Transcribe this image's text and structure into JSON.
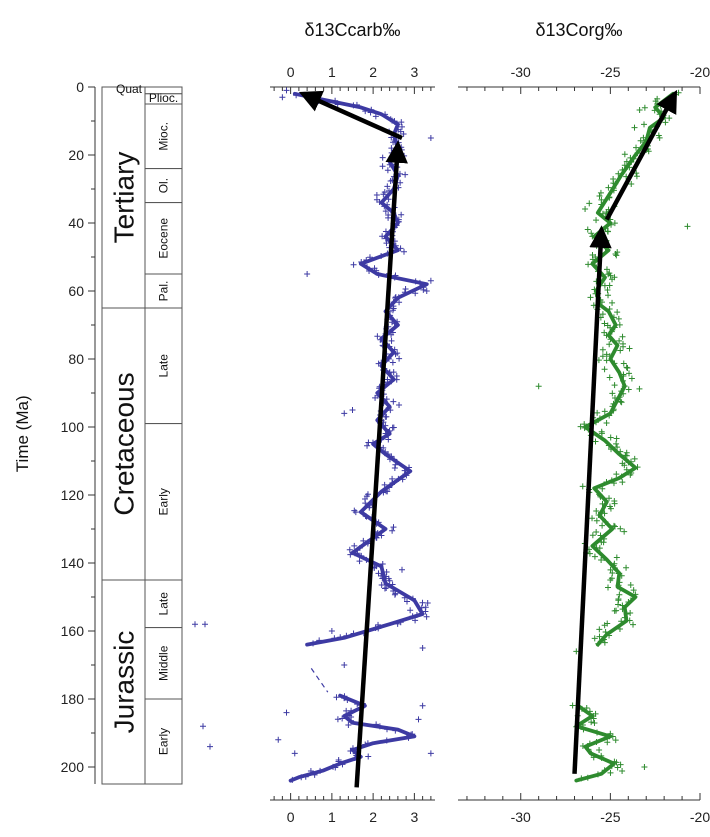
{
  "chart_data": [
    {
      "type": "scatter",
      "title": "δ13Ccarb‰",
      "ylabel": "Time (Ma)",
      "ylim": [
        0,
        205
      ],
      "xlim": [
        -0.5,
        3.5
      ],
      "x_ticks": [
        0,
        1,
        2,
        3
      ],
      "y_ticks": [
        0,
        20,
        40,
        60,
        80,
        100,
        120,
        140,
        160,
        180,
        200
      ],
      "colors": {
        "data": "#3d3aa3",
        "arrows": "#000000"
      },
      "series": [
        {
          "kind": "smoothed-line",
          "points": [
            {
              "x": 0.1,
              "y": 2
            },
            {
              "x": 0.9,
              "y": 4
            },
            {
              "x": 1.7,
              "y": 6
            },
            {
              "x": 2.2,
              "y": 8
            },
            {
              "x": 2.6,
              "y": 11
            },
            {
              "x": 2.5,
              "y": 14
            },
            {
              "x": 2.6,
              "y": 18
            },
            {
              "x": 2.4,
              "y": 22
            },
            {
              "x": 2.6,
              "y": 26
            },
            {
              "x": 2.5,
              "y": 30
            },
            {
              "x": 2.2,
              "y": 34
            },
            {
              "x": 2.5,
              "y": 37
            },
            {
              "x": 2.6,
              "y": 40
            },
            {
              "x": 2.3,
              "y": 44
            },
            {
              "x": 2.6,
              "y": 48
            },
            {
              "x": 1.7,
              "y": 52
            },
            {
              "x": 2.1,
              "y": 55
            },
            {
              "x": 3.3,
              "y": 58
            },
            {
              "x": 2.6,
              "y": 62
            },
            {
              "x": 2.3,
              "y": 66
            },
            {
              "x": 2.6,
              "y": 70
            },
            {
              "x": 2.2,
              "y": 74
            },
            {
              "x": 2.5,
              "y": 78
            },
            {
              "x": 2.2,
              "y": 82
            },
            {
              "x": 2.5,
              "y": 86
            },
            {
              "x": 2.1,
              "y": 90
            },
            {
              "x": 2.4,
              "y": 94
            },
            {
              "x": 2.1,
              "y": 98
            },
            {
              "x": 2.4,
              "y": 102
            },
            {
              "x": 2.0,
              "y": 105
            },
            {
              "x": 2.3,
              "y": 108
            },
            {
              "x": 2.9,
              "y": 113
            },
            {
              "x": 2.2,
              "y": 119
            },
            {
              "x": 1.7,
              "y": 125
            },
            {
              "x": 2.3,
              "y": 130
            },
            {
              "x": 1.5,
              "y": 137
            },
            {
              "x": 2.2,
              "y": 141
            },
            {
              "x": 2.3,
              "y": 146
            },
            {
              "x": 3.0,
              "y": 151
            },
            {
              "x": 3.2,
              "y": 155
            },
            {
              "x": 2.4,
              "y": 158
            },
            {
              "x": 1.3,
              "y": 162
            },
            {
              "x": 0.4,
              "y": 164
            }
          ]
        },
        {
          "kind": "smoothed-line",
          "points": [
            {
              "x": 1.2,
              "y": 179
            },
            {
              "x": 1.8,
              "y": 182
            },
            {
              "x": 1.3,
              "y": 185
            },
            {
              "x": 1.5,
              "y": 187
            },
            {
              "x": 2.6,
              "y": 189
            },
            {
              "x": 3.0,
              "y": 191
            },
            {
              "x": 2.0,
              "y": 193
            },
            {
              "x": 1.5,
              "y": 195
            },
            {
              "x": 1.7,
              "y": 197
            },
            {
              "x": 1.2,
              "y": 199
            },
            {
              "x": 0.8,
              "y": 201
            },
            {
              "x": 0.2,
              "y": 203
            },
            {
              "x": 0.0,
              "y": 204
            }
          ]
        },
        {
          "kind": "dashed-line",
          "points": [
            {
              "x": 0.5,
              "y": 171
            },
            {
              "x": 0.9,
              "y": 178
            }
          ]
        }
      ],
      "arrows": [
        {
          "from": {
            "x": 1.6,
            "y": 206
          },
          "to": {
            "x": 2.6,
            "y": 17
          }
        },
        {
          "from": {
            "x": 2.7,
            "y": 15
          },
          "to": {
            "x": 0.3,
            "y": 2
          }
        }
      ]
    },
    {
      "type": "scatter",
      "title": "δ13Corg‰",
      "ylim": [
        0,
        205
      ],
      "xlim": [
        -33.5,
        -20
      ],
      "x_ticks": [
        -30,
        -25,
        -20
      ],
      "colors": {
        "data": "#2e8b2e",
        "arrows": "#000000"
      },
      "series": [
        {
          "kind": "smoothed-line",
          "points": [
            {
              "x": -21.5,
              "y": 2
            },
            {
              "x": -22.5,
              "y": 6
            },
            {
              "x": -22.0,
              "y": 9
            },
            {
              "x": -22.8,
              "y": 12
            },
            {
              "x": -23.0,
              "y": 16
            },
            {
              "x": -23.6,
              "y": 20
            },
            {
              "x": -24.4,
              "y": 26
            },
            {
              "x": -25.1,
              "y": 32
            },
            {
              "x": -25.7,
              "y": 37
            },
            {
              "x": -25.0,
              "y": 40
            },
            {
              "x": -25.9,
              "y": 44
            },
            {
              "x": -25.1,
              "y": 48
            },
            {
              "x": -26.0,
              "y": 52
            },
            {
              "x": -25.3,
              "y": 56
            },
            {
              "x": -25.8,
              "y": 60
            },
            {
              "x": -25.6,
              "y": 64
            },
            {
              "x": -25.1,
              "y": 66
            },
            {
              "x": -24.7,
              "y": 70
            },
            {
              "x": -25.1,
              "y": 73
            },
            {
              "x": -24.6,
              "y": 76
            },
            {
              "x": -25.0,
              "y": 80
            },
            {
              "x": -24.5,
              "y": 84
            },
            {
              "x": -24.2,
              "y": 88
            },
            {
              "x": -24.6,
              "y": 92
            },
            {
              "x": -25.0,
              "y": 96
            },
            {
              "x": -26.4,
              "y": 100
            },
            {
              "x": -25.3,
              "y": 104
            },
            {
              "x": -24.5,
              "y": 108
            },
            {
              "x": -23.6,
              "y": 112
            },
            {
              "x": -24.5,
              "y": 115
            },
            {
              "x": -25.9,
              "y": 118
            },
            {
              "x": -25.2,
              "y": 122
            },
            {
              "x": -25.6,
              "y": 126
            },
            {
              "x": -24.9,
              "y": 130
            },
            {
              "x": -26.0,
              "y": 135
            },
            {
              "x": -25.2,
              "y": 139
            },
            {
              "x": -24.5,
              "y": 143
            },
            {
              "x": -24.6,
              "y": 147
            },
            {
              "x": -23.6,
              "y": 150
            },
            {
              "x": -24.2,
              "y": 153
            },
            {
              "x": -24.1,
              "y": 157
            },
            {
              "x": -25.2,
              "y": 161
            },
            {
              "x": -25.7,
              "y": 164
            }
          ]
        },
        {
          "kind": "smoothed-line",
          "points": [
            {
              "x": -26.8,
              "y": 182
            },
            {
              "x": -26.0,
              "y": 185
            },
            {
              "x": -26.9,
              "y": 188
            },
            {
              "x": -25.0,
              "y": 191
            },
            {
              "x": -26.4,
              "y": 194
            },
            {
              "x": -26.1,
              "y": 196
            },
            {
              "x": -24.8,
              "y": 199
            },
            {
              "x": -25.5,
              "y": 202
            },
            {
              "x": -26.9,
              "y": 204
            }
          ]
        }
      ],
      "arrows": [
        {
          "from": {
            "x": -27.0,
            "y": 202
          },
          "to": {
            "x": -25.5,
            "y": 42
          }
        },
        {
          "from": {
            "x": -25.2,
            "y": 39
          },
          "to": {
            "x": -21.4,
            "y": 2
          }
        }
      ]
    }
  ],
  "timescale": {
    "periods": [
      {
        "name": "Tertiary",
        "y0": 0,
        "y1": 65
      },
      {
        "name": "Cretaceous",
        "y0": 65,
        "y1": 145
      },
      {
        "name": "Jurassic",
        "y0": 145,
        "y1": 205
      }
    ],
    "epochs": [
      {
        "name": "Quat",
        "y0": 0,
        "y1": 2
      },
      {
        "name": "Plioc.",
        "y0": 2,
        "y1": 5
      },
      {
        "name": "Mioc.",
        "y0": 5,
        "y1": 24
      },
      {
        "name": "Ol.",
        "y0": 24,
        "y1": 34
      },
      {
        "name": "Eocene",
        "y0": 34,
        "y1": 55
      },
      {
        "name": "Pal.",
        "y0": 55,
        "y1": 65
      },
      {
        "name": "Late",
        "y0": 65,
        "y1": 99
      },
      {
        "name": "Early",
        "y0": 99,
        "y1": 145
      },
      {
        "name": "Late",
        "y0": 145,
        "y1": 159
      },
      {
        "name": "Middle",
        "y0": 159,
        "y1": 180
      },
      {
        "name": "Early",
        "y0": 180,
        "y1": 205
      }
    ]
  }
}
